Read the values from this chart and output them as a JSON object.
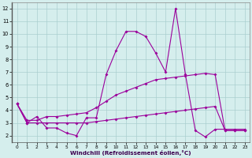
{
  "line1_x": [
    0,
    1,
    2,
    3,
    4,
    5,
    6,
    7,
    8,
    9,
    10,
    11,
    12,
    13,
    14,
    15,
    16,
    17,
    18,
    19,
    20,
    21,
    22,
    23
  ],
  "line1_y": [
    4.5,
    3.0,
    3.5,
    2.6,
    2.6,
    2.2,
    2.0,
    3.4,
    3.4,
    6.8,
    8.7,
    10.2,
    10.2,
    9.8,
    8.5,
    7.0,
    12.0,
    6.8,
    2.4,
    1.9,
    2.5,
    2.5,
    2.5,
    2.5
  ],
  "line2_x": [
    0,
    1,
    2,
    3,
    4,
    5,
    6,
    7,
    8,
    9,
    10,
    11,
    12,
    13,
    14,
    15,
    16,
    17,
    18,
    19,
    20,
    21,
    22,
    23
  ],
  "line2_y": [
    4.5,
    3.2,
    3.2,
    3.5,
    3.5,
    3.6,
    3.7,
    3.8,
    4.2,
    4.7,
    5.2,
    5.5,
    5.8,
    6.1,
    6.4,
    6.5,
    6.6,
    6.7,
    6.8,
    6.9,
    6.8,
    2.4,
    2.4,
    2.4
  ],
  "line3_x": [
    0,
    1,
    2,
    3,
    4,
    5,
    6,
    7,
    8,
    9,
    10,
    11,
    12,
    13,
    14,
    15,
    16,
    17,
    18,
    19,
    20,
    21,
    22,
    23
  ],
  "line3_y": [
    4.5,
    3.0,
    3.0,
    3.0,
    3.0,
    3.0,
    3.0,
    3.0,
    3.1,
    3.2,
    3.3,
    3.4,
    3.5,
    3.6,
    3.7,
    3.8,
    3.9,
    4.0,
    4.1,
    4.2,
    4.3,
    2.4,
    2.4,
    2.4
  ],
  "color": "#9b009b",
  "bg_color": "#d5eeed",
  "grid_color": "#aacfcf",
  "xlabel": "Windchill (Refroidissement éolien,°C)",
  "xlim": [
    -0.5,
    23.5
  ],
  "ylim": [
    1.5,
    12.5
  ],
  "yticks": [
    2,
    3,
    4,
    5,
    6,
    7,
    8,
    9,
    10,
    11,
    12
  ],
  "xticks": [
    0,
    1,
    2,
    3,
    4,
    5,
    6,
    7,
    8,
    9,
    10,
    11,
    12,
    13,
    14,
    15,
    16,
    17,
    18,
    19,
    20,
    21,
    22,
    23
  ],
  "markersize": 2.0,
  "linewidth": 0.8
}
